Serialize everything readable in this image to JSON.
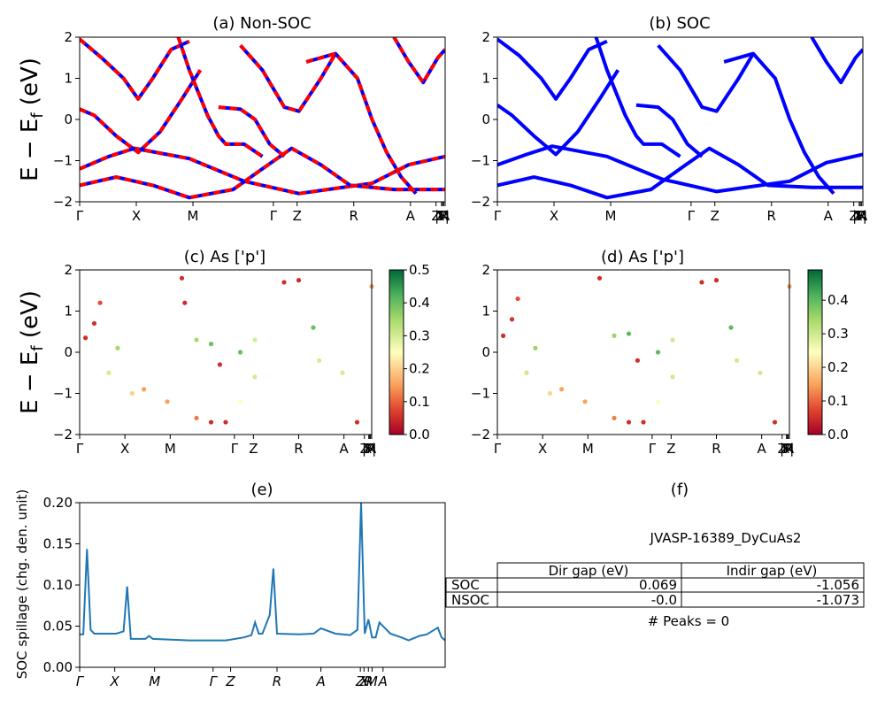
{
  "figure": {
    "material_id": "JVASP-16389_DyCuAs2",
    "peaks_text": "# Peaks = 0"
  },
  "ylabel_band": "E − E_f (eV)",
  "ylabel_spillage": "SOC spillage (chg. den. unit)",
  "kpath_labels": [
    "Γ",
    "X",
    "M",
    "Γ",
    "Z",
    "R",
    "A",
    "Z",
    "|R",
    "X|",
    "M",
    "A"
  ],
  "spillage_kpath_labels": [
    "Γ",
    "X",
    "M",
    "Γ",
    "Z",
    "R",
    "A",
    "Z",
    "X",
    "R",
    "M",
    "A"
  ],
  "colors": {
    "nonsoc_up": "#ff0000",
    "nonsoc_dn": "#0000ff",
    "soc": "#0000ff",
    "spillage": "#1f77b4"
  },
  "gap_table": {
    "headers": [
      "",
      "Dir gap (eV)",
      "Indir gap (eV)"
    ],
    "rows": [
      {
        "label": "SOC",
        "dir": "0.069",
        "indir": "-1.056"
      },
      {
        "label": "NSOC",
        "dir": "-0.0",
        "indir": "-1.073"
      }
    ]
  },
  "chart_data": [
    {
      "id": "a",
      "type": "line",
      "title": "(a) Non-SOC",
      "xlabel": "",
      "ylabel": "E − E_f (eV)",
      "ylim": [
        -2,
        2
      ],
      "yticks": [
        "2",
        "1",
        "0",
        "−1",
        "−2"
      ],
      "series": [
        {
          "values": [
            [
              0,
              -1.2
            ],
            [
              0.08,
              -0.9
            ],
            [
              0.15,
              -0.7
            ],
            [
              0.3,
              -0.95
            ],
            [
              0.45,
              -1.5
            ],
            [
              0.6,
              -1.8
            ],
            [
              0.8,
              -1.55
            ],
            [
              0.9,
              -1.1
            ],
            [
              1,
              -0.9
            ]
          ]
        },
        {
          "values": [
            [
              0,
              0.25
            ],
            [
              0.04,
              0.1
            ],
            [
              0.1,
              -0.4
            ],
            [
              0.16,
              -0.8
            ],
            [
              0.22,
              -0.3
            ],
            [
              0.28,
              0.5
            ],
            [
              0.33,
              1.2
            ]
          ]
        },
        {
          "values": [
            [
              0,
              1.95
            ],
            [
              0.06,
              1.5
            ],
            [
              0.12,
              1.0
            ],
            [
              0.16,
              0.5
            ],
            [
              0.2,
              1.0
            ],
            [
              0.25,
              1.7
            ],
            [
              0.3,
              1.9
            ]
          ]
        },
        {
          "values": [
            [
              0.0,
              -1.6
            ],
            [
              0.1,
              -1.4
            ],
            [
              0.2,
              -1.6
            ],
            [
              0.3,
              -1.9
            ],
            [
              0.42,
              -1.7
            ],
            [
              0.5,
              -1.2
            ],
            [
              0.58,
              -0.7
            ],
            [
              0.66,
              -1.1
            ],
            [
              0.74,
              -1.6
            ],
            [
              0.86,
              -1.7
            ],
            [
              1,
              -1.7
            ]
          ]
        },
        {
          "values": [
            [
              0.27,
              2.0
            ],
            [
              0.3,
              1.2
            ],
            [
              0.35,
              0.1
            ],
            [
              0.38,
              -0.4
            ],
            [
              0.4,
              -0.6
            ],
            [
              0.45,
              -0.6
            ],
            [
              0.5,
              -0.9
            ]
          ]
        },
        {
          "values": [
            [
              0.38,
              0.3
            ],
            [
              0.44,
              0.25
            ],
            [
              0.48,
              0.0
            ],
            [
              0.52,
              -0.6
            ],
            [
              0.56,
              -0.9
            ]
          ]
        },
        {
          "values": [
            [
              0.44,
              1.8
            ],
            [
              0.5,
              1.2
            ],
            [
              0.56,
              0.3
            ],
            [
              0.6,
              0.2
            ],
            [
              0.66,
              1.0
            ],
            [
              0.7,
              1.6
            ]
          ]
        },
        {
          "values": [
            [
              0.62,
              1.4
            ],
            [
              0.7,
              1.6
            ],
            [
              0.76,
              1.0
            ],
            [
              0.8,
              0.0
            ],
            [
              0.84,
              -0.8
            ],
            [
              0.88,
              -1.4
            ],
            [
              0.92,
              -1.8
            ]
          ]
        },
        {
          "values": [
            [
              0.86,
              2.0
            ],
            [
              0.9,
              1.4
            ],
            [
              0.94,
              0.9
            ],
            [
              0.98,
              1.5
            ],
            [
              1,
              1.7
            ]
          ]
        }
      ]
    },
    {
      "id": "b",
      "type": "line",
      "title": "(b) SOC",
      "xlabel": "",
      "ylabel": "",
      "ylim": [
        -2,
        2
      ],
      "yticks": [
        "2",
        "1",
        "0",
        "−1",
        "−2"
      ],
      "series": [
        {
          "values": [
            [
              0,
              -1.1
            ],
            [
              0.08,
              -0.85
            ],
            [
              0.15,
              -0.65
            ],
            [
              0.3,
              -0.9
            ],
            [
              0.45,
              -1.45
            ],
            [
              0.6,
              -1.75
            ],
            [
              0.8,
              -1.5
            ],
            [
              0.9,
              -1.05
            ],
            [
              1,
              -0.85
            ]
          ]
        },
        {
          "values": [
            [
              0,
              0.35
            ],
            [
              0.04,
              0.1
            ],
            [
              0.1,
              -0.4
            ],
            [
              0.16,
              -0.85
            ],
            [
              0.22,
              -0.3
            ],
            [
              0.28,
              0.5
            ],
            [
              0.33,
              1.2
            ]
          ]
        },
        {
          "values": [
            [
              0,
              1.95
            ],
            [
              0.06,
              1.55
            ],
            [
              0.12,
              1.0
            ],
            [
              0.16,
              0.5
            ],
            [
              0.2,
              1.0
            ],
            [
              0.25,
              1.7
            ],
            [
              0.3,
              1.9
            ]
          ]
        },
        {
          "values": [
            [
              0.0,
              -1.6
            ],
            [
              0.1,
              -1.4
            ],
            [
              0.2,
              -1.6
            ],
            [
              0.3,
              -1.9
            ],
            [
              0.42,
              -1.7
            ],
            [
              0.5,
              -1.2
            ],
            [
              0.58,
              -0.7
            ],
            [
              0.66,
              -1.1
            ],
            [
              0.74,
              -1.6
            ],
            [
              0.86,
              -1.65
            ],
            [
              1,
              -1.65
            ]
          ]
        },
        {
          "values": [
            [
              0.27,
              2.0
            ],
            [
              0.3,
              1.2
            ],
            [
              0.35,
              0.1
            ],
            [
              0.38,
              -0.4
            ],
            [
              0.4,
              -0.6
            ],
            [
              0.45,
              -0.6
            ],
            [
              0.5,
              -0.9
            ]
          ]
        },
        {
          "values": [
            [
              0.38,
              0.35
            ],
            [
              0.44,
              0.3
            ],
            [
              0.48,
              0.0
            ],
            [
              0.52,
              -0.6
            ],
            [
              0.56,
              -0.9
            ]
          ]
        },
        {
          "values": [
            [
              0.44,
              1.8
            ],
            [
              0.5,
              1.2
            ],
            [
              0.56,
              0.3
            ],
            [
              0.6,
              0.2
            ],
            [
              0.66,
              1.0
            ],
            [
              0.7,
              1.6
            ]
          ]
        },
        {
          "values": [
            [
              0.62,
              1.4
            ],
            [
              0.7,
              1.6
            ],
            [
              0.76,
              1.0
            ],
            [
              0.8,
              0.0
            ],
            [
              0.84,
              -0.8
            ],
            [
              0.88,
              -1.4
            ],
            [
              0.92,
              -1.8
            ]
          ]
        },
        {
          "values": [
            [
              0.86,
              2.0
            ],
            [
              0.9,
              1.4
            ],
            [
              0.94,
              0.9
            ],
            [
              0.98,
              1.5
            ],
            [
              1,
              1.7
            ]
          ]
        }
      ]
    },
    {
      "id": "c",
      "type": "scatter",
      "title": "(c)  As ['p']",
      "ylim": [
        -2,
        2
      ],
      "yticks": [
        "2",
        "1",
        "0",
        "−1",
        "−2"
      ],
      "colorbar": {
        "range": [
          0,
          0.5
        ],
        "ticks": [
          "0.5",
          "0.4",
          "0.3",
          "0.2",
          "0.1",
          "0.0"
        ]
      },
      "series": [
        {
          "name": "",
          "values": [
            [
              0.02,
              0.35,
              0.05
            ],
            [
              0.05,
              0.7,
              0.05
            ],
            [
              0.07,
              1.2,
              0.08
            ],
            [
              0.1,
              -0.5,
              0.3
            ],
            [
              0.13,
              0.1,
              0.35
            ],
            [
              0.18,
              -1.0,
              0.2
            ],
            [
              0.22,
              -0.9,
              0.15
            ],
            [
              0.3,
              -1.2,
              0.15
            ],
            [
              0.4,
              -1.6,
              0.12
            ],
            [
              0.45,
              -1.7,
              0.05
            ],
            [
              0.5,
              -1.7,
              0.05
            ],
            [
              0.55,
              -1.2,
              0.25
            ],
            [
              0.6,
              -0.6,
              0.3
            ],
            [
              0.35,
              1.8,
              0.05
            ],
            [
              0.36,
              1.2,
              0.05
            ],
            [
              0.4,
              0.3,
              0.35
            ],
            [
              0.45,
              0.2,
              0.4
            ],
            [
              0.48,
              -0.3,
              0.05
            ],
            [
              0.55,
              0.0,
              0.4
            ],
            [
              0.6,
              0.3,
              0.3
            ],
            [
              0.7,
              1.7,
              0.05
            ],
            [
              0.75,
              1.75,
              0.05
            ],
            [
              0.8,
              0.6,
              0.4
            ],
            [
              0.82,
              -0.2,
              0.3
            ],
            [
              0.9,
              -0.5,
              0.3
            ],
            [
              0.95,
              -1.7,
              0.05
            ],
            [
              1.0,
              1.6,
              0.15
            ]
          ]
        }
      ]
    },
    {
      "id": "d",
      "type": "scatter",
      "title": "(d) As ['p']",
      "ylim": [
        -2,
        2
      ],
      "yticks": [
        "2",
        "1",
        "0",
        "−1",
        "−2"
      ],
      "colorbar": {
        "range": [
          0,
          0.49
        ],
        "ticks": [
          "0.4",
          "0.3",
          "0.2",
          "0.1",
          "0.0"
        ]
      },
      "series": [
        {
          "name": "",
          "values": [
            [
              0.02,
              0.4,
              0.05
            ],
            [
              0.05,
              0.8,
              0.05
            ],
            [
              0.07,
              1.3,
              0.08
            ],
            [
              0.1,
              -0.5,
              0.3
            ],
            [
              0.13,
              0.1,
              0.35
            ],
            [
              0.18,
              -1.0,
              0.2
            ],
            [
              0.22,
              -0.9,
              0.15
            ],
            [
              0.3,
              -1.2,
              0.15
            ],
            [
              0.4,
              -1.6,
              0.12
            ],
            [
              0.45,
              -1.7,
              0.05
            ],
            [
              0.5,
              -1.7,
              0.05
            ],
            [
              0.55,
              -1.2,
              0.25
            ],
            [
              0.6,
              -0.6,
              0.3
            ],
            [
              0.35,
              1.8,
              0.05
            ],
            [
              0.4,
              0.4,
              0.35
            ],
            [
              0.45,
              0.45,
              0.4
            ],
            [
              0.48,
              -0.2,
              0.05
            ],
            [
              0.55,
              0.0,
              0.4
            ],
            [
              0.6,
              0.3,
              0.3
            ],
            [
              0.7,
              1.7,
              0.05
            ],
            [
              0.75,
              1.75,
              0.05
            ],
            [
              0.8,
              0.6,
              0.4
            ],
            [
              0.82,
              -0.2,
              0.3
            ],
            [
              0.9,
              -0.5,
              0.3
            ],
            [
              0.95,
              -1.7,
              0.05
            ],
            [
              1.0,
              1.6,
              0.15
            ]
          ]
        }
      ]
    },
    {
      "id": "e",
      "type": "line",
      "title": "(e)",
      "ylabel": "SOC spillage (chg. den. unit)",
      "ylim": [
        0,
        0.22
      ],
      "yticks": [
        "0.00",
        "0.05",
        "0.10",
        "0.15",
        "0.20"
      ],
      "series": [
        {
          "name": "",
          "values": [
            [
              0,
              0.044
            ],
            [
              0.01,
              0.044
            ],
            [
              0.02,
              0.158
            ],
            [
              0.03,
              0.05
            ],
            [
              0.04,
              0.045
            ],
            [
              0.1,
              0.045
            ],
            [
              0.12,
              0.048
            ],
            [
              0.13,
              0.108
            ],
            [
              0.14,
              0.038
            ],
            [
              0.18,
              0.038
            ],
            [
              0.19,
              0.042
            ],
            [
              0.2,
              0.038
            ],
            [
              0.3,
              0.036
            ],
            [
              0.4,
              0.036
            ],
            [
              0.45,
              0.04
            ],
            [
              0.47,
              0.043
            ],
            [
              0.48,
              0.06
            ],
            [
              0.49,
              0.045
            ],
            [
              0.5,
              0.045
            ],
            [
              0.52,
              0.07
            ],
            [
              0.53,
              0.132
            ],
            [
              0.54,
              0.045
            ],
            [
              0.6,
              0.044
            ],
            [
              0.64,
              0.045
            ],
            [
              0.66,
              0.052
            ],
            [
              0.7,
              0.045
            ],
            [
              0.74,
              0.043
            ],
            [
              0.76,
              0.05
            ],
            [
              0.77,
              0.22
            ],
            [
              0.78,
              0.045
            ],
            [
              0.79,
              0.064
            ],
            [
              0.8,
              0.04
            ],
            [
              0.81,
              0.04
            ],
            [
              0.82,
              0.06
            ],
            [
              0.85,
              0.045
            ],
            [
              0.88,
              0.04
            ],
            [
              0.9,
              0.036
            ],
            [
              0.93,
              0.042
            ],
            [
              0.95,
              0.044
            ],
            [
              0.98,
              0.053
            ],
            [
              0.99,
              0.04
            ],
            [
              1,
              0.036
            ]
          ]
        }
      ]
    }
  ]
}
